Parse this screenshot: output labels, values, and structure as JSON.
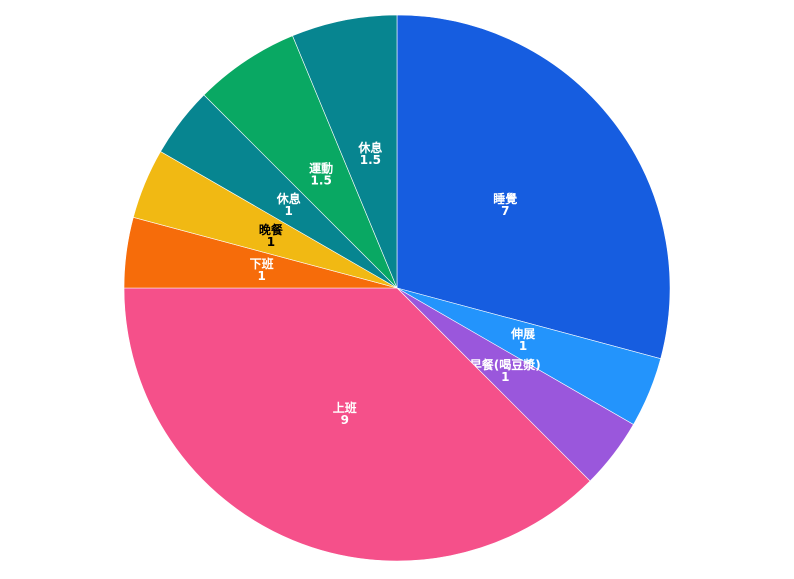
{
  "chart_data": {
    "type": "pie",
    "title": "",
    "slices": [
      {
        "label": "睡覺",
        "value": 7,
        "color": "#165DE0",
        "label_color": "#ffffff"
      },
      {
        "label": "伸展",
        "value": 1,
        "color": "#2394FC",
        "label_color": "#ffffff"
      },
      {
        "label": "早餐(喝豆漿)",
        "value": 1,
        "color": "#9A57DC",
        "label_color": "#ffffff"
      },
      {
        "label": "上班",
        "value": 9,
        "color": "#F5508A",
        "label_color": "#ffffff"
      },
      {
        "label": "下班",
        "value": 1,
        "color": "#F66C0A",
        "label_color": "#ffffff"
      },
      {
        "label": "晚餐",
        "value": 1,
        "color": "#F1B913",
        "label_color": "#000000"
      },
      {
        "label": "休息",
        "value": 1,
        "color": "#078590",
        "label_color": "#ffffff"
      },
      {
        "label": "運動",
        "value": 1.5,
        "color": "#09A863",
        "label_color": "#ffffff"
      },
      {
        "label": "休息",
        "value": 1.5,
        "color": "#078590",
        "label_color": "#ffffff"
      }
    ]
  }
}
